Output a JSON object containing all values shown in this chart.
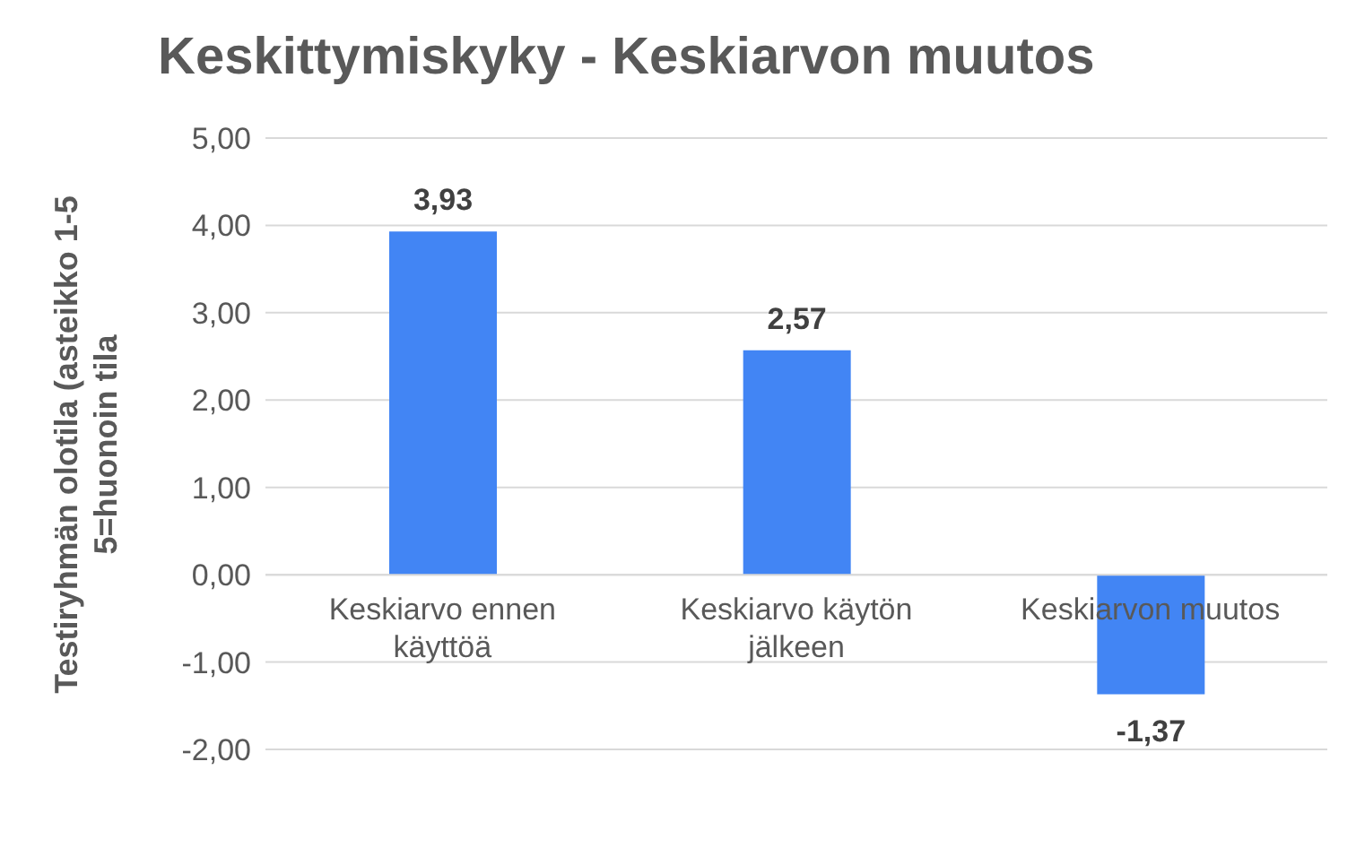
{
  "chart_data": {
    "type": "bar",
    "title": "Keskittymiskyky - Keskiarvon muutos",
    "ylabel": "Testiryhmän olotila (asteikko 1-5 5=huonoin tila",
    "categories": [
      "Keskiarvo ennen käyttöä",
      "Keskiarvo käytön jälkeen",
      "Keskiarvon muutos"
    ],
    "values": [
      3.93,
      2.57,
      -1.37
    ],
    "value_labels": [
      "3,93",
      "2,57",
      "-1,37"
    ],
    "color": "#4285f4",
    "ylim": [
      -2,
      5
    ],
    "yticks": [
      {
        "value": -2,
        "label": "-2,00"
      },
      {
        "value": -1,
        "label": "-1,00"
      },
      {
        "value": 0,
        "label": "0,00"
      },
      {
        "value": 1,
        "label": "1,00"
      },
      {
        "value": 2,
        "label": "2,00"
      },
      {
        "value": 3,
        "label": "3,00"
      },
      {
        "value": 4,
        "label": "4,00"
      },
      {
        "value": 5,
        "label": "5,00"
      }
    ],
    "grid": "y",
    "legend": false
  }
}
